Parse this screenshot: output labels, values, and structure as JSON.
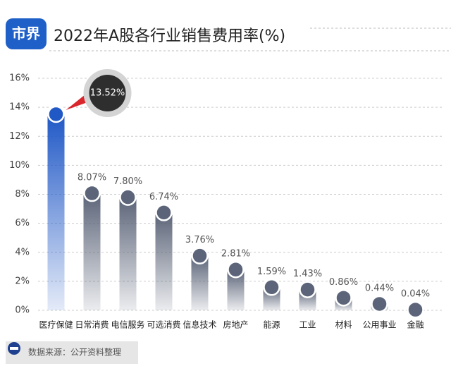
{
  "logo": "市界",
  "source": "数据来源：公开资料整理",
  "chart_data": {
    "type": "bar",
    "title": "2022年A股各行业销售费用率(%)",
    "categories": [
      "医疗保健",
      "日常消费",
      "电信服务",
      "可选消费",
      "信息技术",
      "房地产",
      "能源",
      "工业",
      "材料",
      "公用事业",
      "金融"
    ],
    "values": [
      13.52,
      8.07,
      7.8,
      6.74,
      3.76,
      2.81,
      1.59,
      1.43,
      0.86,
      0.44,
      0.04
    ],
    "value_labels": [
      "13.52%",
      "8.07%",
      "7.80%",
      "6.74%",
      "3.76%",
      "2.81%",
      "1.59%",
      "1.43%",
      "0.86%",
      "0.44%",
      "0.04%"
    ],
    "colors": [
      "#2058c6",
      "#5b6478",
      "#5b6478",
      "#5b6478",
      "#5b6478",
      "#5b6478",
      "#5b6478",
      "#5b6478",
      "#5b6478",
      "#5b6478",
      "#5b6478"
    ],
    "ylim": [
      0,
      16
    ],
    "yticks": [
      {
        "value": 0,
        "label": "0%"
      },
      {
        "value": 2,
        "label": "2%"
      },
      {
        "value": 4,
        "label": "4%"
      },
      {
        "value": 6,
        "label": "6%"
      },
      {
        "value": 8,
        "label": "8%"
      },
      {
        "value": 10,
        "label": "10%"
      },
      {
        "value": 12,
        "label": "12%"
      },
      {
        "value": 14,
        "label": "14%"
      },
      {
        "value": 16,
        "label": "16%"
      }
    ],
    "grid": true
  }
}
